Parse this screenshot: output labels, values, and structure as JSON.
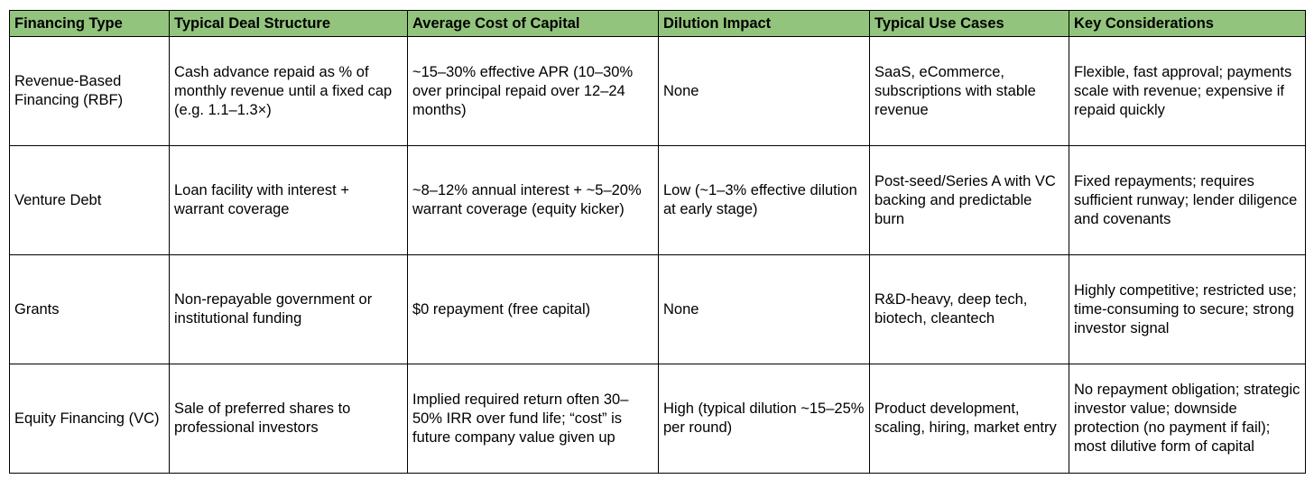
{
  "table": {
    "headers": [
      "Financing Type",
      "Typical Deal Structure",
      "Average Cost of Capital",
      "Dilution Impact",
      "Typical Use Cases",
      "Key Considerations"
    ],
    "rows": [
      [
        "Revenue-Based Financing (RBF)",
        "Cash advance repaid as % of monthly revenue until a fixed cap (e.g. 1.1–1.3×)",
        "~15–30% effective APR (10–30% over principal repaid over 12–24 months)",
        "None",
        "SaaS, eCommerce, subscriptions with stable revenue",
        "Flexible, fast approval; payments scale with revenue; expensive if repaid quickly"
      ],
      [
        "Venture Debt",
        "Loan facility with interest + warrant coverage",
        "~8–12% annual interest + ~5–20% warrant coverage (equity kicker)",
        "Low (~1–3% effective dilution at early stage)",
        "Post-seed/Series A with VC backing and predictable burn",
        "Fixed repayments; requires sufficient runway; lender diligence and covenants"
      ],
      [
        "Grants",
        "Non-repayable government or institutional funding",
        "$0 repayment (free capital)",
        "None",
        "R&D-heavy, deep tech, biotech, cleantech",
        "Highly competitive; restricted use; time-consuming to secure; strong investor signal"
      ],
      [
        "Equity Financing (VC)",
        "Sale of preferred shares to professional investors",
        "Implied required return often 30–50% IRR over fund life; “cost” is future company value given up",
        "High (typical dilution ~15–25% per round)",
        "Product development, scaling, hiring, market entry",
        "No repayment obligation; strategic investor value; downside protection (no payment if fail); most dilutive form of capital"
      ]
    ]
  }
}
